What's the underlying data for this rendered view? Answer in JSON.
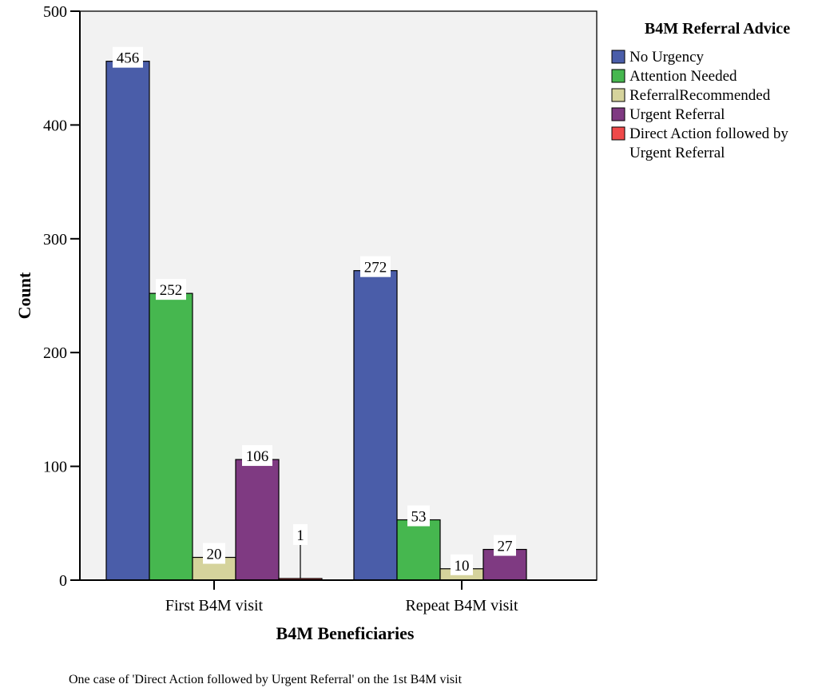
{
  "chart_data": {
    "type": "bar",
    "categories": [
      "First B4M visit",
      "Repeat B4M visit"
    ],
    "series": [
      {
        "name": "No Urgency",
        "values": [
          456,
          272
        ],
        "color": "#4a5da9"
      },
      {
        "name": "Attention Needed",
        "values": [
          252,
          53
        ],
        "color": "#46b74f"
      },
      {
        "name": "ReferralRecommended",
        "values": [
          20,
          10
        ],
        "color": "#d5d39c"
      },
      {
        "name": "Urgent Referral",
        "values": [
          106,
          27
        ],
        "color": "#7f3a82"
      },
      {
        "name": "Direct Action followed by Urgent Referral",
        "values": [
          1,
          null
        ],
        "color": "#f04a4a"
      }
    ],
    "title": "",
    "xlabel": "B4M Beneficiaries",
    "ylabel": "Count",
    "ylim": [
      0,
      500
    ],
    "yticks": [
      0,
      100,
      200,
      300,
      400,
      500
    ],
    "grid": false,
    "legend": {
      "title": "B4M Referral Advice",
      "placement": "right"
    },
    "footnote": "One case of 'Direct Action followed by Urgent Referral' on the 1st B4M visit",
    "plot_background": "#f2f2f2"
  }
}
